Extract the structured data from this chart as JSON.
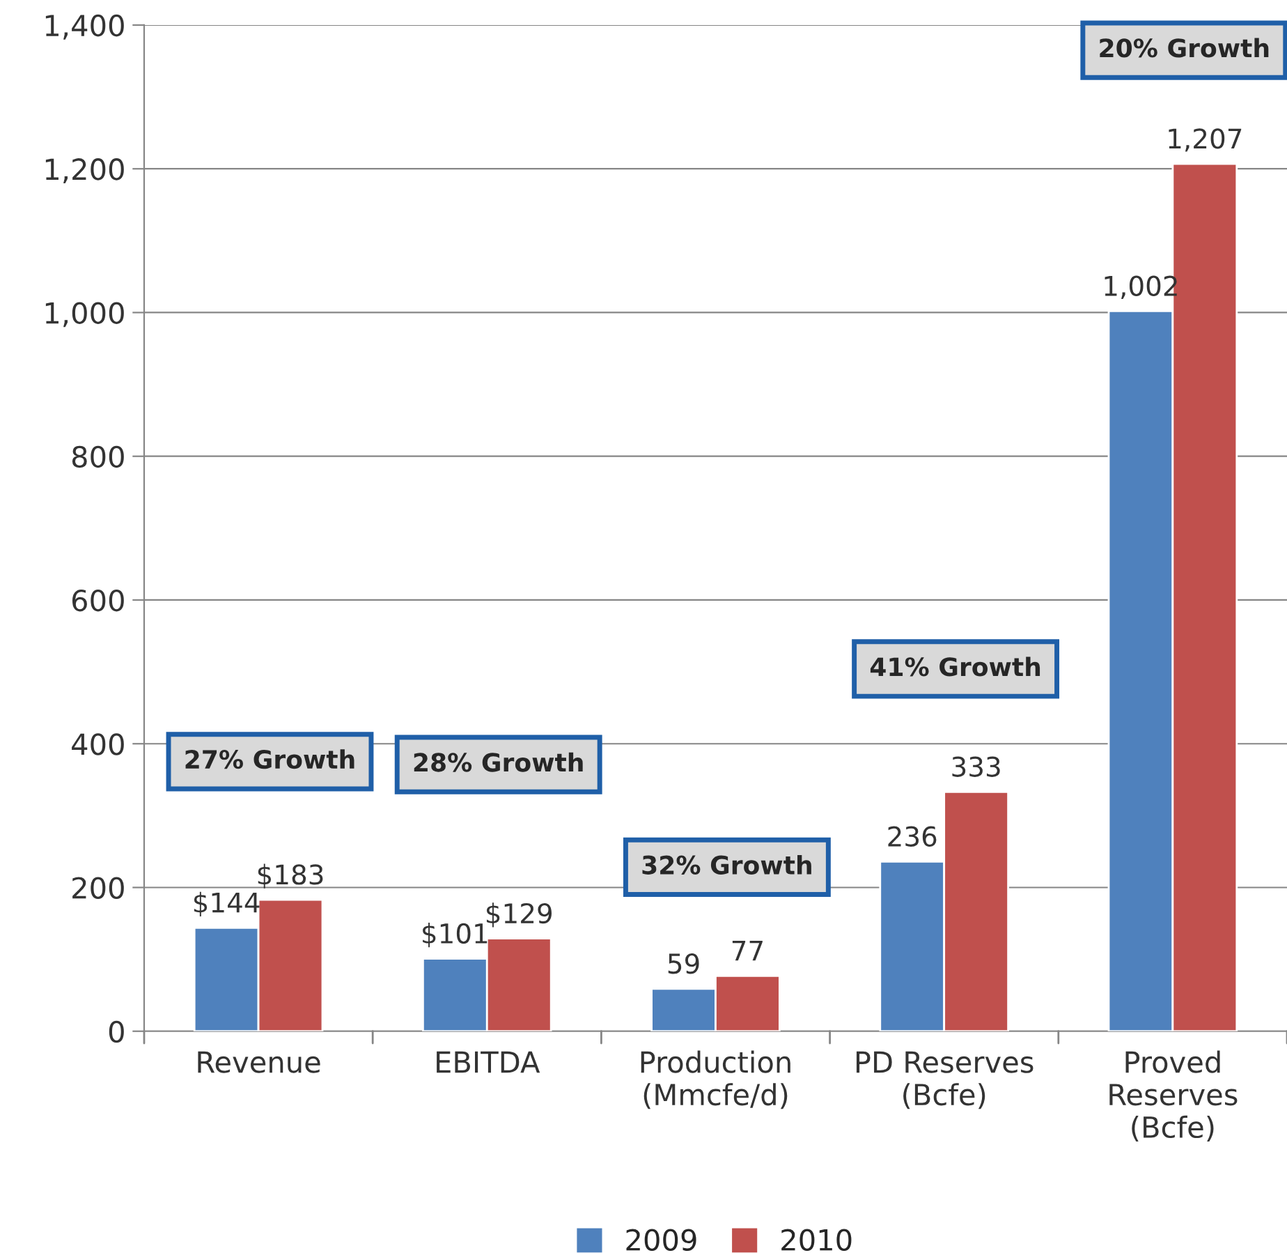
{
  "chart_data": {
    "type": "bar",
    "categories": [
      "Revenue",
      "EBITDA",
      "Production\n(Mmcfe/d)",
      "PD Reserves\n(Bcfe)",
      "Proved\nReserves\n(Bcfe)"
    ],
    "series": [
      {
        "name": "2009",
        "color": "#4f81bd",
        "values": [
          144,
          101,
          59,
          236,
          1002
        ],
        "value_labels": [
          "$144",
          "$101",
          "59",
          "236",
          "1,002"
        ]
      },
      {
        "name": "2010",
        "color": "#c0504d",
        "values": [
          183,
          129,
          77,
          333,
          1207
        ],
        "value_labels": [
          "$183",
          "$129",
          "77",
          "333",
          "1,207"
        ]
      }
    ],
    "ylim": [
      0,
      1400
    ],
    "yticks": [
      0,
      200,
      400,
      600,
      800,
      {
        "value": 1000,
        "label": "1,000"
      },
      {
        "value": 1200,
        "label": "1,200"
      },
      {
        "value": 1400,
        "label": "1,400"
      }
    ],
    "grid": "y",
    "legend": "bottom",
    "annotations": [
      "27% Growth",
      "28% Growth",
      "32% Growth",
      "41% Growth",
      "20% Growth"
    ]
  }
}
